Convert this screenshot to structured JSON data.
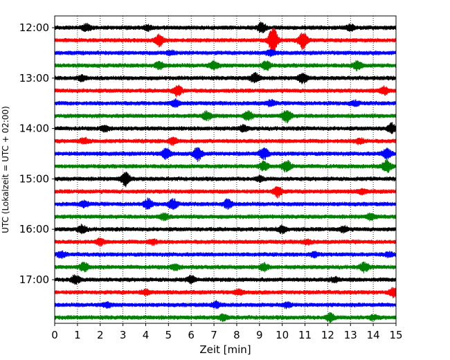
{
  "chart_data": {
    "type": "line",
    "title": "",
    "xlabel": "Zeit  [min]",
    "ylabel": "UTC (Lokalzeit = UTC + 02:00)",
    "xlim": [
      0,
      15
    ],
    "x_ticks": [
      0,
      1,
      2,
      3,
      4,
      5,
      6,
      7,
      8,
      9,
      10,
      11,
      12,
      13,
      14,
      15
    ],
    "y_ticks": [
      "12:00",
      "13:00",
      "14:00",
      "15:00",
      "16:00",
      "17:00"
    ],
    "trace_interval_min": 15,
    "grid": "vertical dotted",
    "colors": [
      "#000000",
      "#ff0000",
      "#0000ff",
      "#008000"
    ],
    "series": [
      {
        "start": "12:00",
        "bursts": [
          [
            1.4,
            0.6
          ],
          [
            4.1,
            0.5
          ],
          [
            9.1,
            0.9
          ],
          [
            13.0,
            0.5
          ]
        ]
      },
      {
        "start": "12:15",
        "bursts": [
          [
            4.6,
            1.0
          ],
          [
            9.6,
            2.8
          ],
          [
            10.9,
            1.6
          ]
        ]
      },
      {
        "start": "12:30",
        "bursts": [
          [
            5.1,
            0.4
          ],
          [
            9.5,
            0.5
          ]
        ]
      },
      {
        "start": "12:45",
        "bursts": [
          [
            4.6,
            0.6
          ],
          [
            7.0,
            0.7
          ],
          [
            9.3,
            0.8
          ],
          [
            13.3,
            0.8
          ]
        ]
      },
      {
        "start": "13:00",
        "bursts": [
          [
            1.2,
            0.5
          ],
          [
            8.8,
            0.9
          ],
          [
            10.9,
            1.0
          ]
        ]
      },
      {
        "start": "13:15",
        "bursts": [
          [
            5.4,
            1.0
          ],
          [
            14.5,
            0.7
          ]
        ]
      },
      {
        "start": "13:30",
        "bursts": [
          [
            5.3,
            0.6
          ],
          [
            9.5,
            0.5
          ],
          [
            13.2,
            0.4
          ]
        ]
      },
      {
        "start": "13:45",
        "bursts": [
          [
            6.7,
            0.8
          ],
          [
            8.5,
            0.8
          ],
          [
            10.2,
            1.2
          ]
        ]
      },
      {
        "start": "14:00",
        "bursts": [
          [
            2.2,
            0.5
          ],
          [
            8.3,
            0.5
          ],
          [
            14.8,
            0.9
          ]
        ]
      },
      {
        "start": "14:15",
        "bursts": [
          [
            1.3,
            0.5
          ],
          [
            5.2,
            0.6
          ],
          [
            13.4,
            0.5
          ]
        ]
      },
      {
        "start": "14:30",
        "bursts": [
          [
            4.9,
            0.9
          ],
          [
            6.3,
            1.2
          ],
          [
            9.2,
            1.0
          ],
          [
            14.6,
            0.9
          ]
        ]
      },
      {
        "start": "14:45",
        "bursts": [
          [
            9.2,
            0.8
          ],
          [
            10.2,
            1.0
          ],
          [
            14.6,
            1.2
          ]
        ]
      },
      {
        "start": "15:00",
        "bursts": [
          [
            3.1,
            1.3
          ],
          [
            9.0,
            0.4
          ]
        ]
      },
      {
        "start": "15:15",
        "bursts": [
          [
            9.8,
            1.0
          ],
          [
            13.5,
            0.4
          ]
        ]
      },
      {
        "start": "15:30",
        "bursts": [
          [
            1.3,
            0.5
          ],
          [
            4.1,
            0.9
          ],
          [
            5.2,
            0.9
          ],
          [
            7.6,
            0.8
          ]
        ]
      },
      {
        "start": "15:45",
        "bursts": [
          [
            4.8,
            0.6
          ],
          [
            13.9,
            0.6
          ]
        ]
      },
      {
        "start": "16:00",
        "bursts": [
          [
            1.2,
            0.7
          ],
          [
            10.0,
            0.6
          ],
          [
            12.7,
            0.5
          ]
        ]
      },
      {
        "start": "16:15",
        "bursts": [
          [
            2.0,
            0.5
          ],
          [
            4.3,
            0.5
          ],
          [
            11.1,
            0.4
          ]
        ]
      },
      {
        "start": "16:30",
        "bursts": [
          [
            0.3,
            0.5
          ],
          [
            11.4,
            0.4
          ],
          [
            14.7,
            0.4
          ]
        ]
      },
      {
        "start": "16:45",
        "bursts": [
          [
            1.3,
            0.8
          ],
          [
            5.3,
            0.5
          ],
          [
            9.2,
            0.6
          ],
          [
            13.6,
            0.8
          ]
        ]
      },
      {
        "start": "17:00",
        "bursts": [
          [
            0.9,
            0.8
          ],
          [
            6.0,
            0.6
          ],
          [
            12.3,
            0.4
          ]
        ]
      },
      {
        "start": "17:15",
        "bursts": [
          [
            4.0,
            0.4
          ],
          [
            8.1,
            0.4
          ],
          [
            14.9,
            0.8
          ]
        ]
      },
      {
        "start": "17:30",
        "bursts": [
          [
            2.3,
            0.4
          ],
          [
            7.1,
            0.6
          ],
          [
            10.2,
            0.4
          ]
        ]
      },
      {
        "start": "17:45",
        "bursts": [
          [
            7.4,
            0.5
          ],
          [
            12.1,
            0.7
          ],
          [
            14.0,
            0.4
          ]
        ]
      }
    ]
  }
}
